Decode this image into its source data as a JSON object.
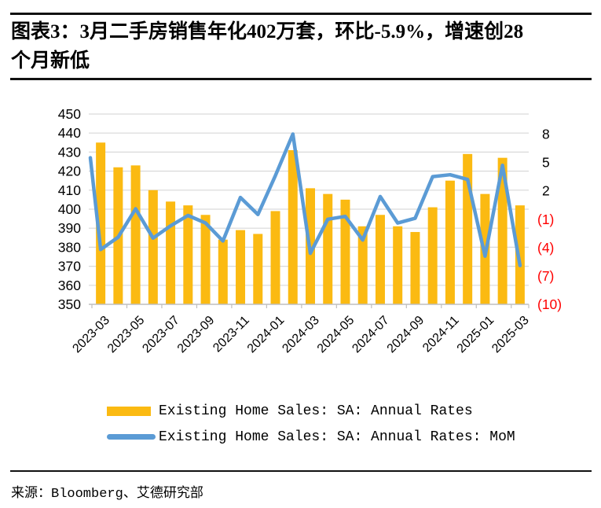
{
  "title": {
    "lines": [
      "图表3：3月二手房销售年化402万套，环比-5.9%，增速创28",
      "个月新低"
    ]
  },
  "source": {
    "label": "来源：Bloomberg、艾德研究部"
  },
  "colors": {
    "bar": "#FBBA12",
    "line": "#5B9BD5",
    "gridline": "#D9D9D9",
    "axis": "#BFBFBF",
    "negative_tick": "#FF0000",
    "text": "#000000"
  },
  "chart_data": {
    "type": "combo-bar-line",
    "categories": [
      "2023-03",
      "2023-04",
      "2023-05",
      "2023-06",
      "2023-07",
      "2023-08",
      "2023-09",
      "2023-10",
      "2023-11",
      "2023-12",
      "2024-01",
      "2024-02",
      "2024-03",
      "2024-04",
      "2024-05",
      "2024-06",
      "2024-07",
      "2024-08",
      "2024-09",
      "2024-10",
      "2024-11",
      "2024-12",
      "2025-01",
      "2025-02",
      "2025-03"
    ],
    "series": [
      {
        "name": "Existing Home Sales: SA: Annual Rates",
        "type": "bar",
        "axis": "left",
        "unit": "万套",
        "color": "#FBBA12",
        "values": [
          435,
          422,
          423,
          410,
          404,
          402,
          397,
          384,
          389,
          387,
          399,
          431,
          411,
          408,
          405,
          391,
          397,
          391,
          388,
          401,
          415,
          429,
          408,
          427,
          402
        ]
      },
      {
        "name": "Existing Home Sales: SA: Annual Rates: MoM",
        "type": "line",
        "axis": "right",
        "unit": "%",
        "color": "#5B9BD5",
        "lead_in_value": 5.5,
        "values": [
          -4.2,
          -2.9,
          0.1,
          -3.0,
          -1.7,
          -0.6,
          -1.4,
          -3.3,
          1.3,
          -0.5,
          3.6,
          8.0,
          -4.6,
          -1.0,
          -0.7,
          -3.2,
          1.4,
          -1.4,
          -0.9,
          3.5,
          3.7,
          3.2,
          -4.9,
          4.7,
          -5.9
        ]
      }
    ],
    "left_axis": {
      "min": 350,
      "max": 450,
      "step": 10,
      "ticks": [
        450,
        440,
        430,
        420,
        410,
        400,
        390,
        380,
        370,
        360,
        350
      ]
    },
    "right_axis": {
      "ticks": [
        8,
        5,
        2,
        -1,
        -4,
        -7,
        -10
      ],
      "negative_format": "parentheses",
      "negative_color": "#FF0000"
    },
    "x_tick_labels": [
      "2023-03",
      "2023-05",
      "2023-07",
      "2023-09",
      "2023-11",
      "2024-01",
      "2024-03",
      "2024-05",
      "2024-07",
      "2024-09",
      "2024-11",
      "2025-01",
      "2025-03"
    ],
    "grid": "horizontal",
    "legend_position": "bottom"
  }
}
